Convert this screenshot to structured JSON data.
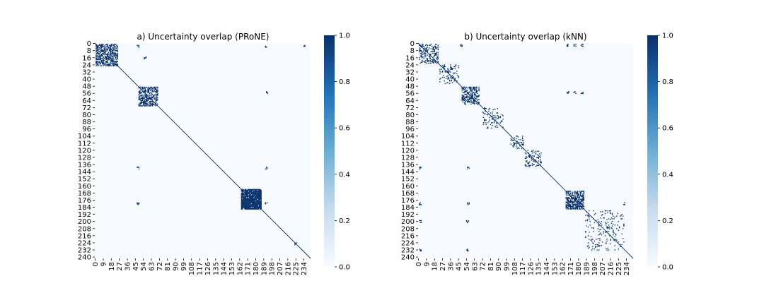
{
  "chart_data": [
    {
      "type": "heatmap",
      "title": "a) Uncertainty overlap (PRoNE)",
      "size": 242,
      "xticks": [
        "0",
        "9",
        "18",
        "27",
        "36",
        "45",
        "54",
        "63",
        "72",
        "81",
        "90",
        "99",
        "108",
        "117",
        "126",
        "135",
        "144",
        "153",
        "162",
        "171",
        "180",
        "189",
        "198",
        "207",
        "216",
        "225",
        "234"
      ],
      "yticks": [
        "0",
        "8",
        "16",
        "24",
        "32",
        "40",
        "48",
        "56",
        "64",
        "72",
        "80",
        "88",
        "96",
        "104",
        "112",
        "120",
        "128",
        "136",
        "144",
        "152",
        "160",
        "168",
        "176",
        "184",
        "192",
        "200",
        "208",
        "216",
        "224",
        "232",
        "240"
      ],
      "colorbar": {
        "min": 0.0,
        "max": 1.0,
        "ticks": [
          "0.0",
          "0.2",
          "0.4",
          "0.6",
          "0.8",
          "1.0"
        ],
        "colormap": "Blues",
        "low_color": "#f7fbff",
        "high_color": "#08306b"
      },
      "diagonal": true,
      "blocks": [
        {
          "start": 1,
          "end": 25,
          "density": 0.55
        },
        {
          "start": 49,
          "end": 70,
          "density": 0.5
        },
        {
          "start": 164,
          "end": 186,
          "density": 0.92
        }
      ],
      "sparse_pairs": [
        [
          3,
          48
        ],
        [
          3,
          192
        ],
        [
          3,
          234
        ],
        [
          55,
          192
        ],
        [
          180,
          48
        ],
        [
          180,
          192
        ],
        [
          140,
          192
        ],
        [
          140,
          48
        ],
        [
          16,
          56
        ],
        [
          225,
          225
        ]
      ]
    },
    {
      "type": "heatmap",
      "title": "b) Uncertainty overlap (kNN)",
      "size": 242,
      "xticks": [
        "0",
        "9",
        "18",
        "27",
        "36",
        "45",
        "54",
        "63",
        "72",
        "81",
        "90",
        "99",
        "108",
        "117",
        "126",
        "135",
        "144",
        "153",
        "162",
        "171",
        "180",
        "189",
        "198",
        "207",
        "216",
        "225",
        "234"
      ],
      "yticks": [
        "0",
        "8",
        "16",
        "24",
        "32",
        "40",
        "48",
        "56",
        "64",
        "72",
        "80",
        "88",
        "96",
        "104",
        "112",
        "120",
        "128",
        "136",
        "144",
        "152",
        "160",
        "168",
        "176",
        "184",
        "192",
        "200",
        "208",
        "216",
        "224",
        "232",
        "240"
      ],
      "colorbar": {
        "min": 0.0,
        "max": 1.0,
        "ticks": [
          "0.0",
          "0.2",
          "0.4",
          "0.6",
          "0.8",
          "1.0"
        ],
        "colormap": "Blues",
        "low_color": "#f7fbff",
        "high_color": "#08306b"
      },
      "diagonal": true,
      "blocks": [
        {
          "start": 1,
          "end": 22,
          "density": 0.3
        },
        {
          "start": 24,
          "end": 45,
          "density": 0.22
        },
        {
          "start": 49,
          "end": 68,
          "density": 0.45
        },
        {
          "start": 72,
          "end": 95,
          "density": 0.15
        },
        {
          "start": 104,
          "end": 118,
          "density": 0.25
        },
        {
          "start": 120,
          "end": 138,
          "density": 0.2
        },
        {
          "start": 166,
          "end": 186,
          "density": 0.6
        },
        {
          "start": 188,
          "end": 232,
          "density": 0.1
        }
      ],
      "sparse_pairs": [
        [
          2,
          48
        ],
        [
          2,
          168
        ],
        [
          2,
          176
        ],
        [
          2,
          184
        ],
        [
          55,
          168
        ],
        [
          55,
          176
        ],
        [
          55,
          184
        ],
        [
          180,
          56
        ],
        [
          180,
          2
        ],
        [
          180,
          232
        ],
        [
          140,
          56
        ],
        [
          140,
          2
        ],
        [
          232,
          2
        ],
        [
          232,
          55
        ],
        [
          200,
          2
        ],
        [
          200,
          55
        ]
      ]
    }
  ]
}
